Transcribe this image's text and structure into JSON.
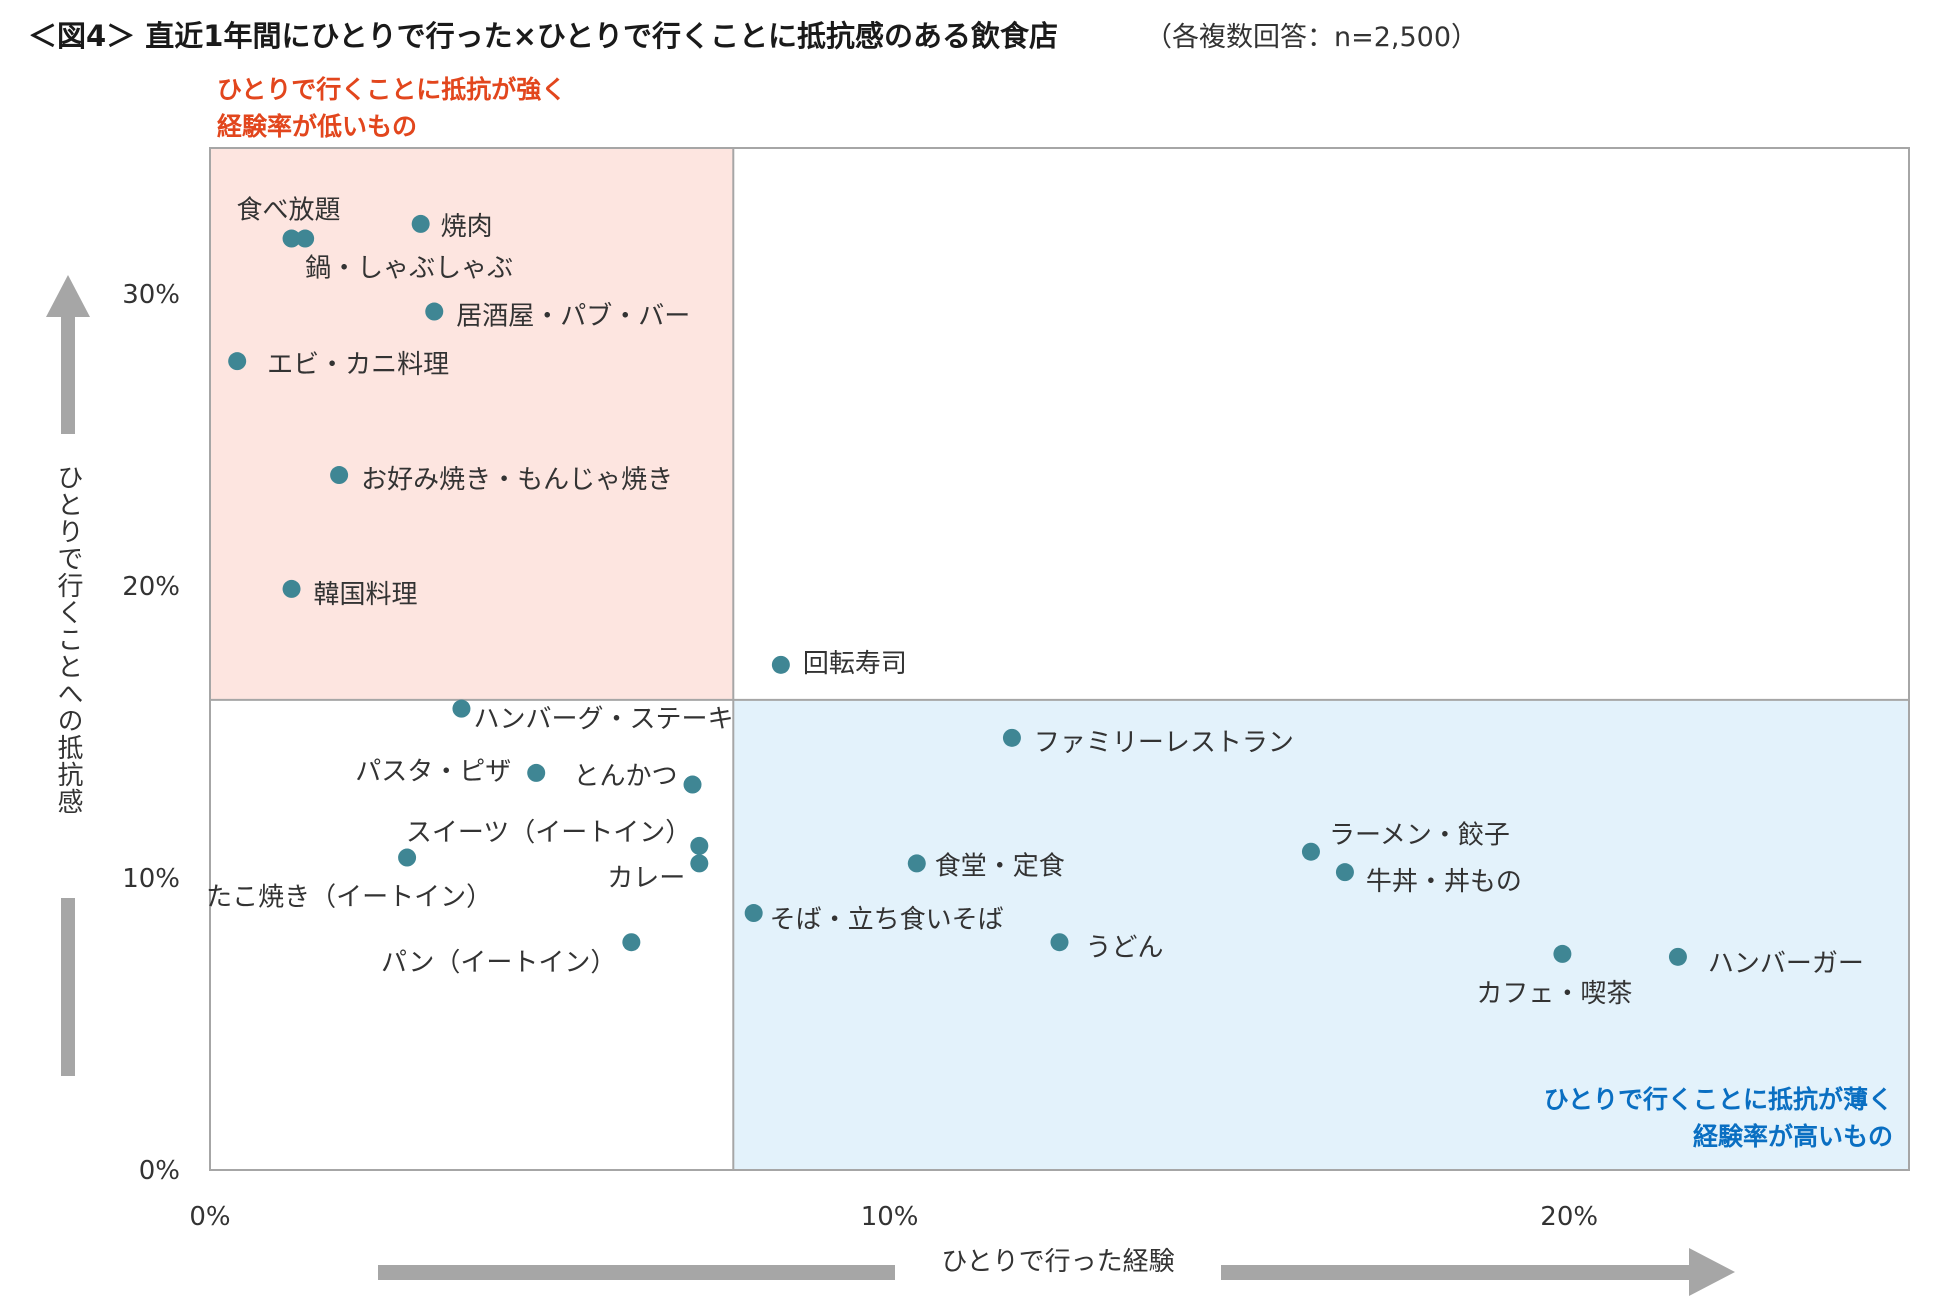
{
  "title": {
    "main": "＜図4＞ 直近1年間にひとりで行った×ひとりで行くことに抵抗感のある飲食店",
    "sub": "（各複数回答：n=2,500）"
  },
  "quadrants": {
    "top_left": [
      "ひとりで行くことに抵抗が強く",
      "経験率が低いもの"
    ],
    "bottom_right": [
      "ひとりで行くことに抵抗が薄く",
      "経験率が高いもの"
    ]
  },
  "colors": {
    "point": "#3f8694",
    "top_left_fill": "#fde5e0",
    "bottom_right_fill": "#e3f2fb",
    "red_text": "#e2461d",
    "blue_text": "#0a6fc2",
    "arrow": "#a6a6a6",
    "frame": "#a6a6a6"
  },
  "chart_data": {
    "type": "scatter",
    "xlabel": "ひとりで行った経験",
    "ylabel": "ひとりで行くことへの抵抗感",
    "xlim": [
      0,
      25
    ],
    "ylim": [
      0,
      35
    ],
    "x_ticks": [
      0,
      10,
      20
    ],
    "x_tick_labels": [
      "0%",
      "10%",
      "20%"
    ],
    "y_ticks": [
      0,
      10,
      20,
      30
    ],
    "y_tick_labels": [
      "0%",
      "10%",
      "20%",
      "30%"
    ],
    "quadrant_divider": {
      "x": 7.7,
      "y": 16.1
    },
    "grid": false,
    "points": [
      {
        "label": "食べ放題",
        "x": 1.2,
        "y": 31.9
      },
      {
        "label": "鍋・しゃぶしゃぶ",
        "x": 1.4,
        "y": 31.9
      },
      {
        "label": "焼肉",
        "x": 3.1,
        "y": 32.4
      },
      {
        "label": "居酒屋・パブ・バー",
        "x": 3.3,
        "y": 29.4
      },
      {
        "label": "エビ・カニ料理",
        "x": 0.4,
        "y": 27.7
      },
      {
        "label": "お好み焼き・もんじゃ焼き",
        "x": 1.9,
        "y": 23.8
      },
      {
        "label": "韓国料理",
        "x": 1.2,
        "y": 19.9
      },
      {
        "label": "回転寿司",
        "x": 8.4,
        "y": 17.3
      },
      {
        "label": "ハンバーグ・ステーキ",
        "x": 3.7,
        "y": 15.8
      },
      {
        "label": "パスタ・ピザ",
        "x": 4.8,
        "y": 13.6
      },
      {
        "label": "とんかつ",
        "x": 7.1,
        "y": 13.2
      },
      {
        "label": "スイーツ（イートイン）",
        "x": 7.2,
        "y": 11.1
      },
      {
        "label": "カレー",
        "x": 7.2,
        "y": 10.5
      },
      {
        "label": "たこ焼き（イートイン）",
        "x": 2.9,
        "y": 10.7
      },
      {
        "label": "パン（イートイン）",
        "x": 6.2,
        "y": 7.8
      },
      {
        "label": "ファミリーレストラン",
        "x": 11.8,
        "y": 14.8
      },
      {
        "label": "食堂・定食",
        "x": 10.4,
        "y": 10.5
      },
      {
        "label": "そば・立ち食いそば",
        "x": 8.0,
        "y": 8.8
      },
      {
        "label": "うどん",
        "x": 12.5,
        "y": 7.8
      },
      {
        "label": "ラーメン・餃子",
        "x": 16.2,
        "y": 10.9
      },
      {
        "label": "牛丼・丼もの",
        "x": 16.7,
        "y": 10.2
      },
      {
        "label": "カフェ・喫茶",
        "x": 19.9,
        "y": 7.4
      },
      {
        "label": "ハンバーガー",
        "x": 21.6,
        "y": 7.3
      }
    ]
  }
}
